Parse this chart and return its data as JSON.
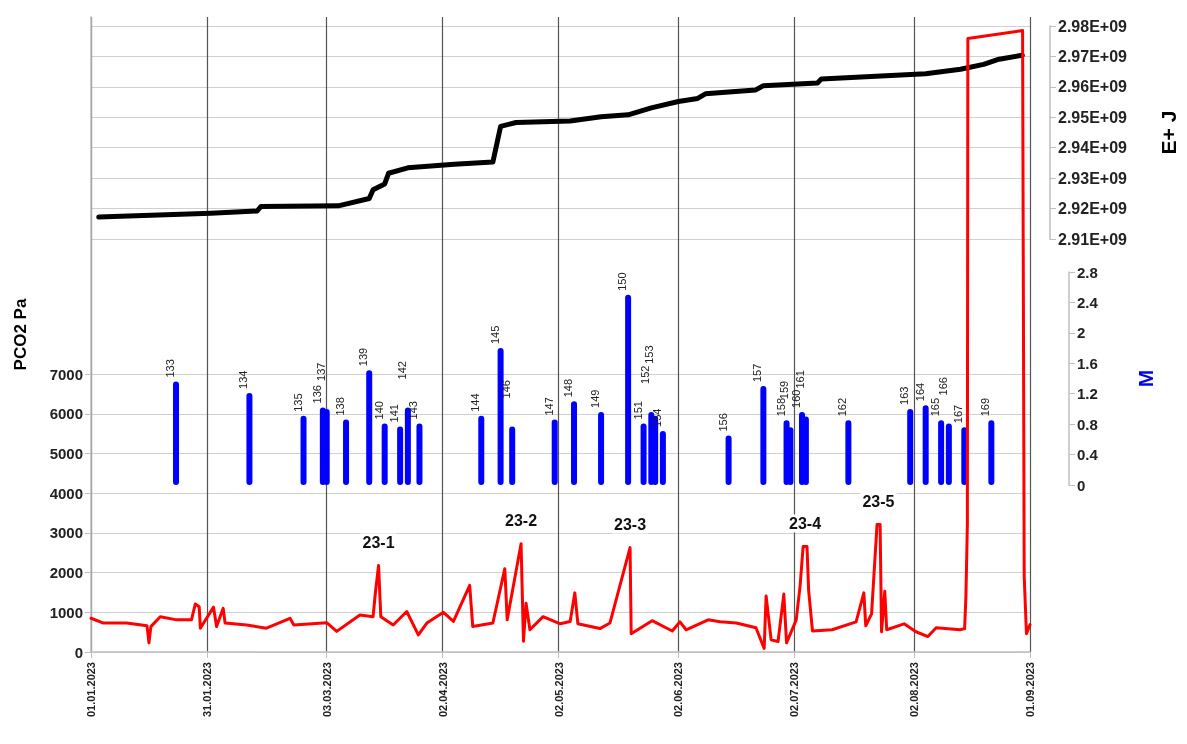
{
  "chart_data": {
    "type": "line",
    "ylabel": "PCO2 Pa",
    "y2label": "E+ J",
    "y3label": "M",
    "xlim": [
      "2023-01-01",
      "2023-09-01"
    ],
    "xticks": [
      {
        "value": "2023-01-01",
        "label": "01.01.2023"
      },
      {
        "value": "2023-01-31",
        "label": "31.01.2023"
      },
      {
        "value": "2023-03-03",
        "label": "03.03.2023"
      },
      {
        "value": "2023-04-02",
        "label": "02.04.2023"
      },
      {
        "value": "2023-05-02",
        "label": "02.05.2023"
      },
      {
        "value": "2023-06-02",
        "label": "02.06.2023"
      },
      {
        "value": "2023-07-02",
        "label": "02.07.2023"
      },
      {
        "value": "2023-08-02",
        "label": "02.08.2023"
      },
      {
        "value": "2023-09-01",
        "label": "01.09.2023"
      }
    ],
    "ylim": [
      0,
      16000
    ],
    "yticks": [
      0,
      1000,
      2000,
      3000,
      4000,
      5000,
      6000,
      7000
    ],
    "y2lim": [
      2910000000,
      2980000000
    ],
    "y2ticks": [
      {
        "value": 2910000000,
        "label": "2.91E+09"
      },
      {
        "value": 2920000000,
        "label": "2.92E+09"
      },
      {
        "value": 2930000000,
        "label": "2.93E+09"
      },
      {
        "value": 2940000000,
        "label": "2.94E+09"
      },
      {
        "value": 2950000000,
        "label": "2.95E+09"
      },
      {
        "value": 2960000000,
        "label": "2.96E+09"
      },
      {
        "value": 2970000000,
        "label": "2.97E+09"
      },
      {
        "value": 2980000000,
        "label": "2.98E+09"
      }
    ],
    "y3lim": [
      0,
      2.8
    ],
    "y3ticks": [
      0,
      0.4,
      0.8,
      1.2,
      1.6,
      2,
      2.4,
      2.8
    ],
    "series": [
      {
        "type": "bar",
        "axis": "y3",
        "color": "#0000ff",
        "x": [
          "2023-01-23",
          "2023-02-11",
          "2023-02-25",
          "2023-03-02",
          "2023-03-03",
          "2023-03-08",
          "2023-03-14",
          "2023-03-18",
          "2023-03-22",
          "2023-03-24",
          "2023-03-27",
          "2023-04-12",
          "2023-04-17",
          "2023-04-20",
          "2023-05-01",
          "2023-05-06",
          "2023-05-13",
          "2023-05-20",
          "2023-05-24",
          "2023-05-26",
          "2023-05-27",
          "2023-05-29",
          "2023-06-15",
          "2023-06-24",
          "2023-06-30",
          "2023-07-01",
          "2023-07-04",
          "2023-07-05",
          "2023-07-16",
          "2023-08-01",
          "2023-08-05",
          "2023-08-09",
          "2023-08-11",
          "2023-08-15",
          "2023-08-22"
        ],
        "values": [
          1.36,
          1.21,
          0.91,
          1.02,
          1.0,
          0.86,
          1.51,
          0.81,
          0.77,
          1.02,
          0.81,
          0.91,
          1.8,
          0.77,
          0.86,
          1.1,
          0.96,
          2.5,
          0.81,
          0.96,
          0.91,
          0.71,
          0.65,
          1.3,
          0.85,
          0.76,
          0.96,
          0.9,
          0.85,
          1.0,
          1.05,
          0.85,
          0.81,
          0.76,
          0.85
        ]
      },
      {
        "type": "line",
        "axis": "y2",
        "color": "#000000",
        "x": [
          "2023-01-03",
          "2023-02-01",
          "2023-02-13",
          "2023-02-14",
          "2023-03-06",
          "2023-03-14",
          "2023-03-15",
          "2023-03-18",
          "2023-03-19",
          "2023-03-24",
          "2023-04-05",
          "2023-04-15",
          "2023-04-17",
          "2023-04-21",
          "2023-05-05",
          "2023-05-13",
          "2023-05-20",
          "2023-05-26",
          "2023-06-02",
          "2023-06-07",
          "2023-06-09",
          "2023-06-22",
          "2023-06-24",
          "2023-07-08",
          "2023-07-09",
          "2023-08-05",
          "2023-08-14",
          "2023-08-20",
          "2023-08-24",
          "2023-08-30"
        ],
        "values": [
          2917200000,
          2918500000,
          2919200000,
          2920700000,
          2920900000,
          2923300000,
          2926200000,
          2928100000,
          2931600000,
          2933400000,
          2934600000,
          2935300000,
          2947000000,
          2948300000,
          2948800000,
          2950200000,
          2950800000,
          2953100000,
          2955200000,
          2956200000,
          2957700000,
          2959000000,
          2960400000,
          2961300000,
          2962600000,
          2964300000,
          2965800000,
          2967400000,
          2969100000,
          2970400000
        ]
      },
      {
        "color": "#ff0000",
        "x": [
          "2023-01-01",
          "2023-01-04T05:00",
          "2023-01-10T05:00",
          "2023-01-15T12:00",
          "2023-01-16",
          "2023-01-16T12:00",
          "2023-01-18T22:00",
          "2023-01-23T05:00",
          "2023-01-27",
          "2023-01-28",
          "2023-01-29",
          "2023-01-29T07:00",
          "2023-02-01T17:00",
          "2023-02-02T12:00",
          "2023-02-04T05:00",
          "2023-02-04T17:00",
          "2023-02-10T07:00",
          "2023-02-15T10:00",
          "2023-02-21T12:00",
          "2023-02-22T12:00",
          "2023-03-03",
          "2023-03-05T14:00",
          "2023-03-11T14:00",
          "2023-03-15",
          "2023-03-15T14:00",
          "2023-03-16T10:00",
          "2023-03-17",
          "2023-03-20T05:00",
          "2023-03-23T17:00",
          "2023-03-26T17:00",
          "2023-03-28T22:00",
          "2023-04-02T05:00",
          "2023-04-04T19:00",
          "2023-04-09",
          "2023-04-09T19:00",
          "2023-04-15",
          "2023-04-18T02:00",
          "2023-04-18T17:00",
          "2023-04-22T07:00",
          "2023-04-22T22:00",
          "2023-04-23T14:00",
          "2023-04-24T14:00",
          "2023-04-28",
          "2023-05-02T10:00",
          "2023-05-05",
          "2023-05-06T05:00",
          "2023-05-07",
          "2023-05-12T17:00",
          "2023-05-15T07:00",
          "2023-05-20T12:00",
          "2023-05-20T19:00",
          "2023-05-26T05:00",
          "2023-05-31T10:00",
          "2023-06-02T10:00",
          "2023-06-04",
          "2023-06-09T17:00",
          "2023-06-12T19:00",
          "2023-06-17",
          "2023-06-22T02:00",
          "2023-06-24T05:00",
          "2023-06-24T17:00",
          "2023-06-26",
          "2023-06-27T19:00",
          "2023-06-29T07:00",
          "2023-06-30",
          "2023-07-02T12:00",
          "2023-07-03T12:00",
          "2023-07-04T07:00",
          "2023-07-05T07:00",
          "2023-07-05T17:00",
          "2023-07-06T17:00",
          "2023-07-11T19:00",
          "2023-07-18",
          "2023-07-20",
          "2023-07-20T12:00",
          "2023-07-22",
          "2023-07-23T10:00",
          "2023-07-24T05:00",
          "2023-07-24T14:00",
          "2023-07-25T10:00",
          "2023-07-25T22:00",
          "2023-07-30T10:00",
          "2023-08-02T12:00",
          "2023-08-05T14:00",
          "2023-08-07T17:00",
          "2023-08-13T22:00",
          "2023-08-15T02:00",
          "2023-08-15T10:00",
          "2023-08-15T19:00",
          "2023-08-15T22:00",
          "2023-08-30T02:00",
          "2023-08-30T12:00",
          "2023-08-31T02:00",
          "2023-09-01"
        ],
        "values": [
          850,
          730,
          730,
          660,
          230,
          640,
          890,
          810,
          810,
          1210,
          1140,
          600,
          1130,
          640,
          1100,
          730,
          680,
          600,
          850,
          680,
          740,
          520,
          930,
          890,
          1480,
          2180,
          890,
          680,
          1020,
          430,
          730,
          1000,
          770,
          1680,
          640,
          730,
          2100,
          810,
          2730,
          270,
          1230,
          560,
          890,
          710,
          770,
          1490,
          710,
          590,
          730,
          2630,
          460,
          790,
          530,
          760,
          560,
          810,
          760,
          730,
          610,
          90,
          1410,
          310,
          260,
          1460,
          230,
          810,
          1660,
          2660,
          2660,
          1560,
          530,
          560,
          760,
          1490,
          660,
          960,
          3210,
          3210,
          510,
          1530,
          560,
          710,
          510,
          390,
          610,
          560,
          590,
          1410,
          3210,
          15460,
          15660,
          1910,
          460,
          690
        ]
      }
    ],
    "annotations": [
      {
        "text": "23-1",
        "x": "2023-03-16T10:00",
        "y": 2180
      },
      {
        "text": "23-2",
        "x": "2023-04-22T07:00",
        "y": 2730
      },
      "133",
      "134",
      "135",
      "136",
      "137",
      "138",
      "139",
      "140",
      "141",
      "142",
      "143",
      "144",
      "145",
      "146",
      "147",
      "148",
      "149",
      "150",
      "151",
      "152",
      "153",
      "154",
      "156",
      "157",
      "158",
      "159",
      "160",
      "161",
      "162",
      "163",
      "164",
      "165",
      "166",
      "167",
      "169",
      {
        "text": "23-3",
        "x": "2023-05-20T12:00",
        "y": 2630
      },
      {
        "text": "23-4",
        "x": "2023-07-04T19:00",
        "y": 2660
      },
      {
        "text": "23-5",
        "x": "2023-07-23T19:00",
        "y": 3210
      }
    ],
    "grid": true,
    "marker": "none"
  }
}
